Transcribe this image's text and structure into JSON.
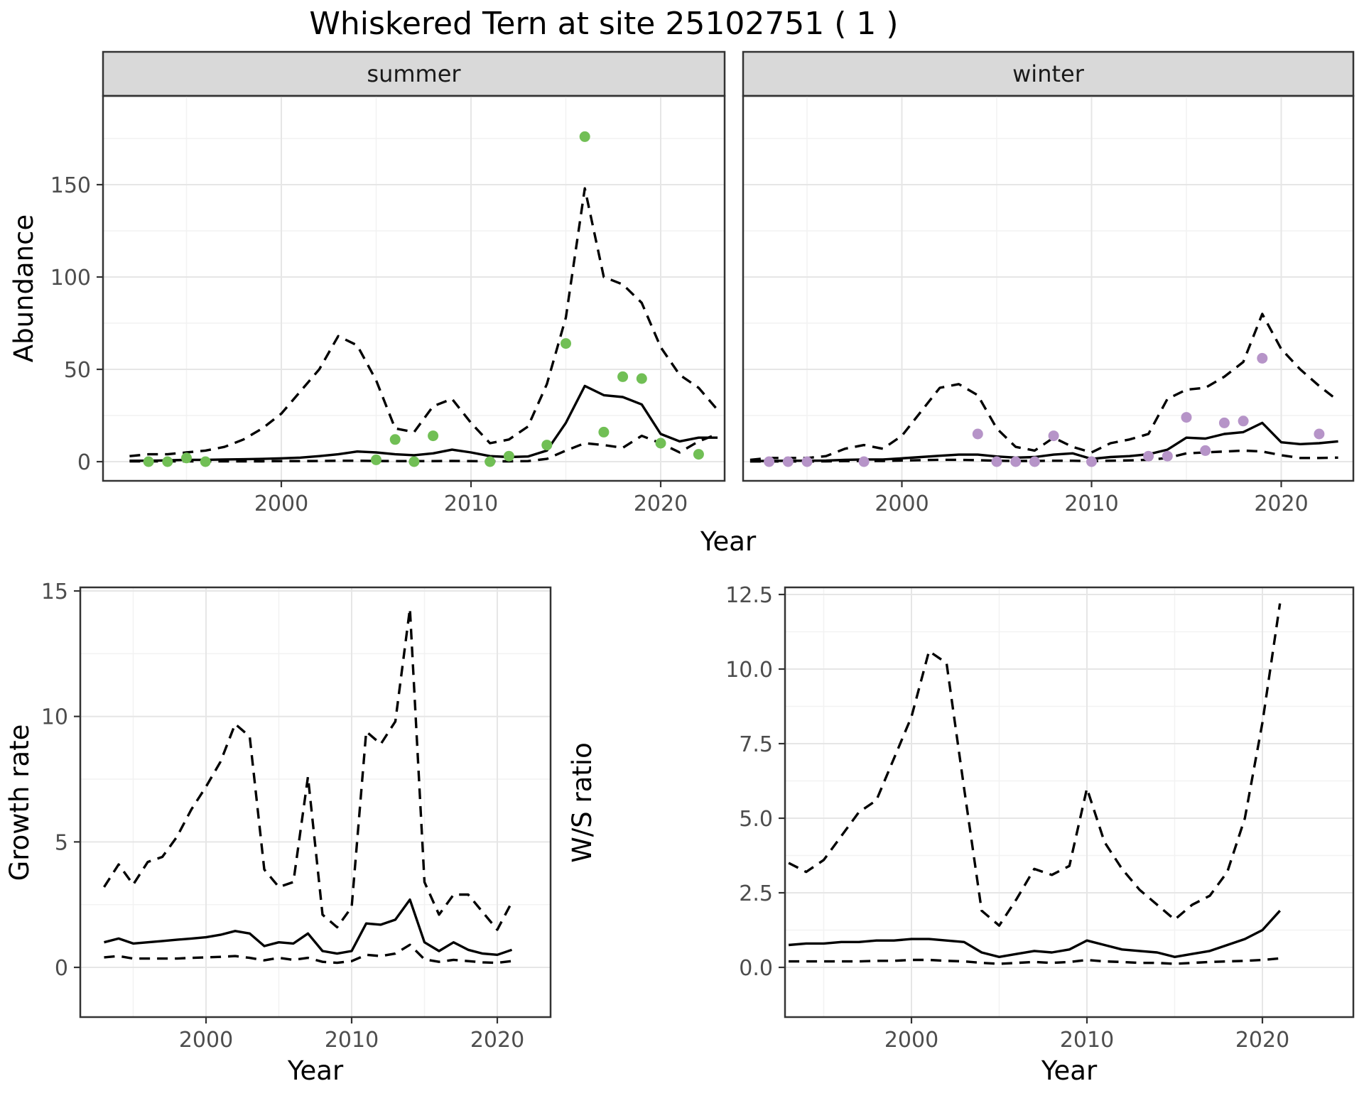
{
  "figure": {
    "title": "Whiskered Tern at site 25102751 ( 1 )",
    "y_label_top": "Abundance",
    "x_label_top": "Year"
  },
  "colors": {
    "summer_points": "#71bf55",
    "winter_points": "#b694c8",
    "line": "#000000",
    "strip_bg": "#d9d9d9",
    "panel_border": "#333333",
    "grid_major": "#e6e6e6",
    "grid_minor": "#f2f2f2",
    "tick_color": "#333333",
    "tick_label": "#4d4d4d"
  },
  "chart_data": [
    {
      "id": "abundance_summer",
      "type": "line",
      "facet_label": "summer",
      "ylabel": "Abundance",
      "xlabel": "Year",
      "xlim": [
        1990.6,
        2023.4
      ],
      "ylim": [
        0,
        195
      ],
      "xticks": [
        2000,
        2010,
        2020
      ],
      "xtick_labels": [
        "2000",
        "2010",
        "2020"
      ],
      "xticks_minor": [
        1995,
        2005,
        2015
      ],
      "yticks": [
        0,
        50,
        100,
        150
      ],
      "ytick_labels": [
        "0",
        "50",
        "100",
        "150"
      ],
      "yticks_minor": [
        25,
        75,
        125,
        175
      ],
      "x": [
        1992,
        1993,
        1994,
        1995,
        1996,
        1997,
        1998,
        1999,
        2000,
        2001,
        2002,
        2003,
        2004,
        2005,
        2006,
        2007,
        2008,
        2009,
        2010,
        2011,
        2012,
        2013,
        2014,
        2015,
        2016,
        2017,
        2018,
        2019,
        2020,
        2021,
        2022,
        2023
      ],
      "series": [
        {
          "name": "upper_95ci",
          "style": "dashed",
          "values": [
            3,
            4,
            4,
            5,
            6,
            8,
            12,
            18,
            26,
            38,
            50,
            68,
            63,
            44,
            18,
            16,
            30,
            34,
            21,
            10,
            12,
            19,
            42,
            78,
            148,
            100,
            96,
            86,
            62,
            47,
            40,
            28
          ]
        },
        {
          "name": "mean",
          "style": "solid",
          "values": [
            0.5,
            0.5,
            0.7,
            1,
            1,
            1.2,
            1.3,
            1.5,
            1.8,
            2.2,
            3,
            4,
            5.5,
            5,
            4,
            3.5,
            4.5,
            6.5,
            5,
            3,
            2.5,
            2.8,
            6,
            21,
            41,
            36,
            35,
            31,
            15,
            11,
            13,
            13
          ]
        },
        {
          "name": "lower_95ci",
          "style": "dashed",
          "values": [
            0.2,
            0.2,
            0.2,
            0.2,
            0.2,
            0.2,
            0.2,
            0.2,
            0.3,
            0.3,
            0.4,
            0.5,
            0.5,
            0.4,
            0.3,
            0.3,
            0.3,
            0.4,
            0.3,
            0.2,
            0.2,
            0.3,
            1.5,
            6,
            10,
            9,
            7.5,
            14,
            10,
            5,
            11,
            15
          ]
        }
      ],
      "points": {
        "name": "observed_counts",
        "color_key": "summer_points",
        "x": [
          1993,
          1994,
          1995,
          1996,
          2005,
          2006,
          2007,
          2008,
          2011,
          2012,
          2014,
          2015,
          2016,
          2017,
          2018,
          2019,
          2020,
          2022
        ],
        "y": [
          0,
          0,
          2,
          0,
          1,
          12,
          0,
          14,
          0,
          3,
          9,
          64,
          176,
          16,
          46,
          45,
          10,
          4
        ]
      }
    },
    {
      "id": "abundance_winter",
      "type": "line",
      "facet_label": "winter",
      "ylabel": "Abundance",
      "xlabel": "Year",
      "xlim": [
        1991.6,
        2023.8
      ],
      "ylim": [
        0,
        195
      ],
      "xticks": [
        2000,
        2010,
        2020
      ],
      "xtick_labels": [
        "2000",
        "2010",
        "2020"
      ],
      "xticks_minor": [
        1995,
        2005,
        2015
      ],
      "yticks": [
        0,
        50,
        100,
        150
      ],
      "ytick_labels": [
        "0",
        "50",
        "100",
        "150"
      ],
      "yticks_minor": [
        25,
        75,
        125,
        175
      ],
      "x": [
        1992,
        1993,
        1994,
        1995,
        1996,
        1997,
        1998,
        1999,
        2000,
        2001,
        2002,
        2003,
        2004,
        2005,
        2006,
        2007,
        2008,
        2009,
        2010,
        2011,
        2012,
        2013,
        2014,
        2015,
        2016,
        2017,
        2018,
        2019,
        2020,
        2021,
        2022,
        2023
      ],
      "series": [
        {
          "name": "upper_95ci",
          "style": "dashed",
          "values": [
            1,
            2,
            2,
            2,
            3,
            7,
            9,
            7,
            14,
            27,
            40,
            42,
            36,
            18,
            8,
            6,
            13,
            8,
            5,
            10,
            12,
            15,
            34,
            39,
            40,
            46,
            54,
            80,
            61,
            50,
            41,
            33
          ]
        },
        {
          "name": "mean",
          "style": "solid",
          "values": [
            0.3,
            0.4,
            0.5,
            0.5,
            0.6,
            1,
            1.2,
            1.2,
            1.8,
            2.5,
            3.2,
            3.8,
            3.8,
            2.8,
            2.2,
            2.5,
            3.8,
            4.5,
            1.5,
            2.5,
            3,
            4,
            6.5,
            13,
            12.5,
            15,
            16,
            21,
            10.5,
            9.5,
            10,
            11
          ]
        },
        {
          "name": "lower_95ci",
          "style": "dashed",
          "values": [
            0.1,
            0.1,
            0.1,
            0.1,
            0.2,
            0.3,
            0.4,
            0.4,
            0.6,
            0.8,
            1,
            1,
            0.8,
            0.5,
            0.4,
            0.4,
            0.5,
            0.5,
            0.3,
            0.5,
            0.7,
            1,
            2,
            4.5,
            5,
            5.5,
            6,
            5.5,
            3.5,
            2,
            2,
            2.2
          ]
        }
      ],
      "points": {
        "name": "observed_counts",
        "color_key": "winter_points",
        "x": [
          1993,
          1994,
          1995,
          1998,
          2004,
          2005,
          2006,
          2007,
          2008,
          2010,
          2013,
          2014,
          2015,
          2016,
          2017,
          2018,
          2019,
          2022
        ],
        "y": [
          0,
          0,
          0,
          0,
          15,
          0,
          0,
          0,
          14,
          0,
          3,
          3,
          24,
          6,
          21,
          22,
          56,
          15
        ]
      }
    },
    {
      "id": "growth_rate",
      "type": "line",
      "facet_label": "",
      "ylabel": "Growth rate",
      "xlabel": "Year",
      "xlim": [
        1991.4,
        2023.7
      ],
      "ylim": [
        0,
        15
      ],
      "xticks": [
        2000,
        2010,
        2020
      ],
      "xtick_labels": [
        "2000",
        "2010",
        "2020"
      ],
      "xticks_minor": [
        1995,
        2005,
        2015
      ],
      "yticks": [
        0,
        5,
        10,
        15
      ],
      "ytick_labels": [
        "0",
        "5",
        "10",
        "15"
      ],
      "yticks_minor": [
        2.5,
        7.5,
        12.5
      ],
      "x": [
        1993,
        1994,
        1995,
        1996,
        1997,
        1998,
        1999,
        2000,
        2001,
        2002,
        2003,
        2004,
        2005,
        2006,
        2007,
        2008,
        2009,
        2010,
        2011,
        2012,
        2013,
        2014,
        2015,
        2016,
        2017,
        2018,
        2019,
        2020,
        2021
      ],
      "series": [
        {
          "name": "upper_95ci",
          "style": "dashed",
          "values": [
            3.2,
            4.1,
            3.3,
            4.2,
            4.4,
            5.2,
            6.3,
            7.2,
            8.2,
            9.7,
            9.2,
            3.9,
            3.2,
            3.4,
            7.6,
            2.1,
            1.6,
            2.4,
            9.4,
            8.9,
            9.8,
            14.3,
            3.4,
            2.1,
            2.9,
            2.9,
            2.2,
            1.5,
            2.6
          ]
        },
        {
          "name": "mean",
          "style": "solid",
          "values": [
            1.0,
            1.15,
            0.95,
            1.0,
            1.05,
            1.1,
            1.15,
            1.2,
            1.3,
            1.45,
            1.35,
            0.85,
            1.0,
            0.95,
            1.35,
            0.65,
            0.55,
            0.65,
            1.75,
            1.7,
            1.9,
            2.7,
            1.0,
            0.65,
            1.0,
            0.7,
            0.55,
            0.5,
            0.7
          ]
        },
        {
          "name": "lower_95ci",
          "style": "dashed",
          "values": [
            0.4,
            0.45,
            0.35,
            0.35,
            0.35,
            0.35,
            0.38,
            0.4,
            0.42,
            0.45,
            0.38,
            0.28,
            0.38,
            0.3,
            0.38,
            0.22,
            0.18,
            0.25,
            0.5,
            0.45,
            0.55,
            0.9,
            0.32,
            0.22,
            0.3,
            0.25,
            0.2,
            0.18,
            0.25
          ]
        }
      ],
      "points": null
    },
    {
      "id": "ws_ratio",
      "type": "line",
      "facet_label": "",
      "ylabel": "W/S ratio",
      "xlabel": "Year",
      "xlim": [
        1992.8,
        2025.2
      ],
      "ylim": [
        0,
        12.7
      ],
      "xticks": [
        2000,
        2010,
        2020
      ],
      "xtick_labels": [
        "2000",
        "2010",
        "2020"
      ],
      "xticks_minor": [
        1995,
        2005,
        2015
      ],
      "yticks": [
        0,
        2.5,
        5,
        7.5,
        10,
        12.5
      ],
      "ytick_labels": [
        "0.0",
        "2.5",
        "5.0",
        "7.5",
        "10.0",
        "12.5"
      ],
      "yticks_minor": [
        1.25,
        3.75,
        6.25,
        8.75,
        11.25
      ],
      "x": [
        1993,
        1994,
        1995,
        1996,
        1997,
        1998,
        1999,
        2000,
        2001,
        2002,
        2003,
        2004,
        2005,
        2006,
        2007,
        2008,
        2009,
        2010,
        2011,
        2012,
        2013,
        2014,
        2015,
        2016,
        2017,
        2018,
        2019,
        2020,
        2021
      ],
      "series": [
        {
          "name": "upper_95ci",
          "style": "dashed",
          "values": [
            3.5,
            3.2,
            3.6,
            4.4,
            5.2,
            5.6,
            7.0,
            8.4,
            10.6,
            10.2,
            6.0,
            1.9,
            1.4,
            2.3,
            3.3,
            3.1,
            3.4,
            6.0,
            4.2,
            3.3,
            2.6,
            2.1,
            1.6,
            2.1,
            2.4,
            3.2,
            5.0,
            8.2,
            12.2
          ]
        },
        {
          "name": "mean",
          "style": "solid",
          "values": [
            0.75,
            0.8,
            0.8,
            0.85,
            0.85,
            0.9,
            0.9,
            0.95,
            0.95,
            0.9,
            0.85,
            0.5,
            0.35,
            0.45,
            0.55,
            0.5,
            0.6,
            0.9,
            0.75,
            0.6,
            0.55,
            0.5,
            0.35,
            0.45,
            0.55,
            0.75,
            0.95,
            1.25,
            1.9
          ]
        },
        {
          "name": "lower_95ci",
          "style": "dashed",
          "values": [
            0.2,
            0.2,
            0.2,
            0.2,
            0.2,
            0.22,
            0.22,
            0.25,
            0.25,
            0.22,
            0.2,
            0.15,
            0.12,
            0.15,
            0.18,
            0.15,
            0.18,
            0.25,
            0.2,
            0.18,
            0.15,
            0.15,
            0.12,
            0.15,
            0.18,
            0.2,
            0.22,
            0.25,
            0.3
          ]
        }
      ],
      "points": null
    }
  ]
}
